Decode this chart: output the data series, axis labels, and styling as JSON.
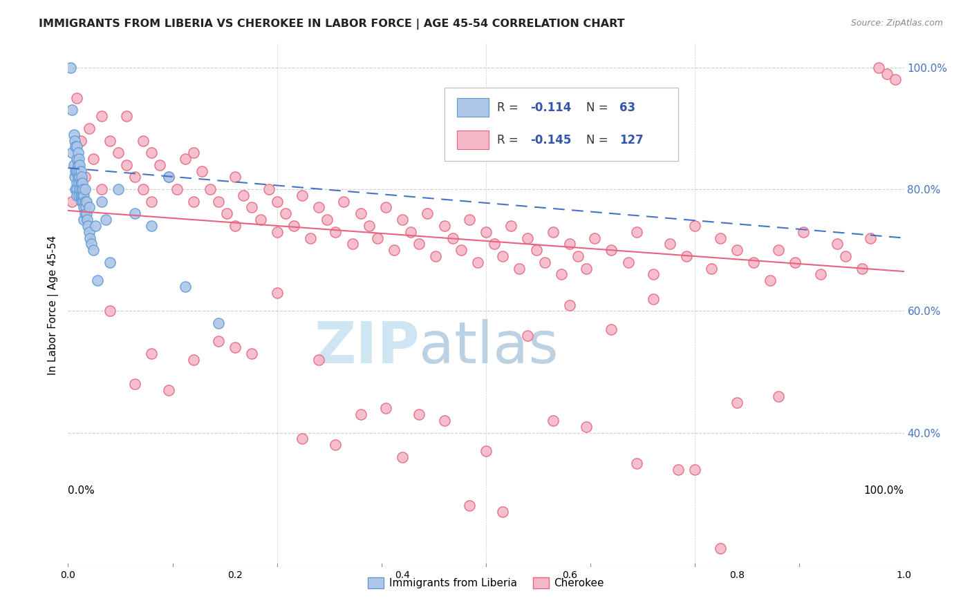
{
  "title": "IMMIGRANTS FROM LIBERIA VS CHEROKEE IN LABOR FORCE | AGE 45-54 CORRELATION CHART",
  "source": "Source: ZipAtlas.com",
  "ylabel": "In Labor Force | Age 45-54",
  "legend_blue_label": "Immigrants from Liberia",
  "legend_pink_label": "Cherokee",
  "blue_color": "#aec6e8",
  "blue_edge_color": "#5b9bd5",
  "pink_color": "#f4b8c8",
  "pink_edge_color": "#e8637e",
  "blue_line_color": "#4472c4",
  "pink_line_color": "#e8637e",
  "right_tick_color": "#4472c4",
  "watermark_zip_color": "#c5dff0",
  "watermark_atlas_color": "#a0bfd8",
  "blue_trend_x0": 0.0,
  "blue_trend_y0": 0.835,
  "blue_trend_x1": 1.0,
  "blue_trend_y1": 0.72,
  "pink_trend_x0": 0.0,
  "pink_trend_y0": 0.765,
  "pink_trend_x1": 1.0,
  "pink_trend_y1": 0.665,
  "xmin": 0.0,
  "xmax": 1.0,
  "ymin": 0.18,
  "ymax": 1.04,
  "blue_scatter_x": [
    0.003,
    0.005,
    0.005,
    0.007,
    0.007,
    0.008,
    0.008,
    0.009,
    0.009,
    0.009,
    0.01,
    0.01,
    0.01,
    0.01,
    0.01,
    0.01,
    0.012,
    0.012,
    0.012,
    0.013,
    0.013,
    0.013,
    0.013,
    0.014,
    0.014,
    0.014,
    0.015,
    0.015,
    0.015,
    0.016,
    0.016,
    0.016,
    0.017,
    0.017,
    0.018,
    0.018,
    0.019,
    0.019,
    0.019,
    0.02,
    0.02,
    0.02,
    0.021,
    0.022,
    0.022,
    0.023,
    0.024,
    0.025,
    0.025,
    0.026,
    0.028,
    0.03,
    0.033,
    0.035,
    0.04,
    0.045,
    0.05,
    0.06,
    0.08,
    0.1,
    0.12,
    0.14,
    0.18
  ],
  "blue_scatter_y": [
    1.0,
    0.93,
    0.86,
    0.89,
    0.84,
    0.88,
    0.82,
    0.87,
    0.83,
    0.8,
    0.87,
    0.85,
    0.83,
    0.81,
    0.8,
    0.79,
    0.86,
    0.84,
    0.82,
    0.85,
    0.83,
    0.81,
    0.79,
    0.84,
    0.82,
    0.8,
    0.83,
    0.81,
    0.79,
    0.82,
    0.8,
    0.78,
    0.81,
    0.79,
    0.8,
    0.78,
    0.79,
    0.77,
    0.75,
    0.8,
    0.78,
    0.76,
    0.77,
    0.78,
    0.76,
    0.75,
    0.74,
    0.77,
    0.73,
    0.72,
    0.71,
    0.7,
    0.74,
    0.65,
    0.78,
    0.75,
    0.68,
    0.8,
    0.76,
    0.74,
    0.82,
    0.64,
    0.58
  ],
  "pink_scatter_x": [
    0.005,
    0.01,
    0.015,
    0.02,
    0.025,
    0.03,
    0.04,
    0.04,
    0.05,
    0.06,
    0.07,
    0.07,
    0.08,
    0.09,
    0.09,
    0.1,
    0.1,
    0.11,
    0.12,
    0.13,
    0.14,
    0.15,
    0.15,
    0.16,
    0.17,
    0.18,
    0.19,
    0.2,
    0.2,
    0.21,
    0.22,
    0.23,
    0.24,
    0.25,
    0.25,
    0.26,
    0.27,
    0.28,
    0.29,
    0.3,
    0.31,
    0.32,
    0.33,
    0.34,
    0.35,
    0.36,
    0.37,
    0.38,
    0.39,
    0.4,
    0.41,
    0.42,
    0.43,
    0.44,
    0.45,
    0.46,
    0.47,
    0.48,
    0.49,
    0.5,
    0.51,
    0.52,
    0.53,
    0.54,
    0.55,
    0.56,
    0.57,
    0.58,
    0.59,
    0.6,
    0.61,
    0.62,
    0.63,
    0.65,
    0.67,
    0.68,
    0.7,
    0.72,
    0.74,
    0.75,
    0.77,
    0.78,
    0.8,
    0.82,
    0.84,
    0.85,
    0.87,
    0.88,
    0.9,
    0.92,
    0.93,
    0.95,
    0.96,
    0.97,
    0.98,
    0.99,
    0.8,
    0.85,
    0.7,
    0.6,
    0.5,
    0.4,
    0.3,
    0.2,
    0.15,
    0.1,
    0.35,
    0.45,
    0.55,
    0.65,
    0.75,
    0.25,
    0.05,
    0.08,
    0.12,
    0.18,
    0.22,
    0.28,
    0.32,
    0.38,
    0.42,
    0.48,
    0.52,
    0.58,
    0.62,
    0.68,
    0.73,
    0.78
  ],
  "pink_scatter_y": [
    0.78,
    0.95,
    0.88,
    0.82,
    0.9,
    0.85,
    0.92,
    0.8,
    0.88,
    0.86,
    0.84,
    0.92,
    0.82,
    0.88,
    0.8,
    0.86,
    0.78,
    0.84,
    0.82,
    0.8,
    0.85,
    0.78,
    0.86,
    0.83,
    0.8,
    0.78,
    0.76,
    0.82,
    0.74,
    0.79,
    0.77,
    0.75,
    0.8,
    0.78,
    0.73,
    0.76,
    0.74,
    0.79,
    0.72,
    0.77,
    0.75,
    0.73,
    0.78,
    0.71,
    0.76,
    0.74,
    0.72,
    0.77,
    0.7,
    0.75,
    0.73,
    0.71,
    0.76,
    0.69,
    0.74,
    0.72,
    0.7,
    0.75,
    0.68,
    0.73,
    0.71,
    0.69,
    0.74,
    0.67,
    0.72,
    0.7,
    0.68,
    0.73,
    0.66,
    0.71,
    0.69,
    0.67,
    0.72,
    0.7,
    0.68,
    0.73,
    0.66,
    0.71,
    0.69,
    0.74,
    0.67,
    0.72,
    0.7,
    0.68,
    0.65,
    0.7,
    0.68,
    0.73,
    0.66,
    0.71,
    0.69,
    0.67,
    0.72,
    1.0,
    0.99,
    0.98,
    0.45,
    0.46,
    0.62,
    0.61,
    0.37,
    0.36,
    0.52,
    0.54,
    0.52,
    0.53,
    0.43,
    0.42,
    0.56,
    0.57,
    0.34,
    0.63,
    0.6,
    0.48,
    0.47,
    0.55,
    0.53,
    0.39,
    0.38,
    0.44,
    0.43,
    0.28,
    0.27,
    0.42,
    0.41,
    0.35,
    0.34,
    0.21
  ]
}
